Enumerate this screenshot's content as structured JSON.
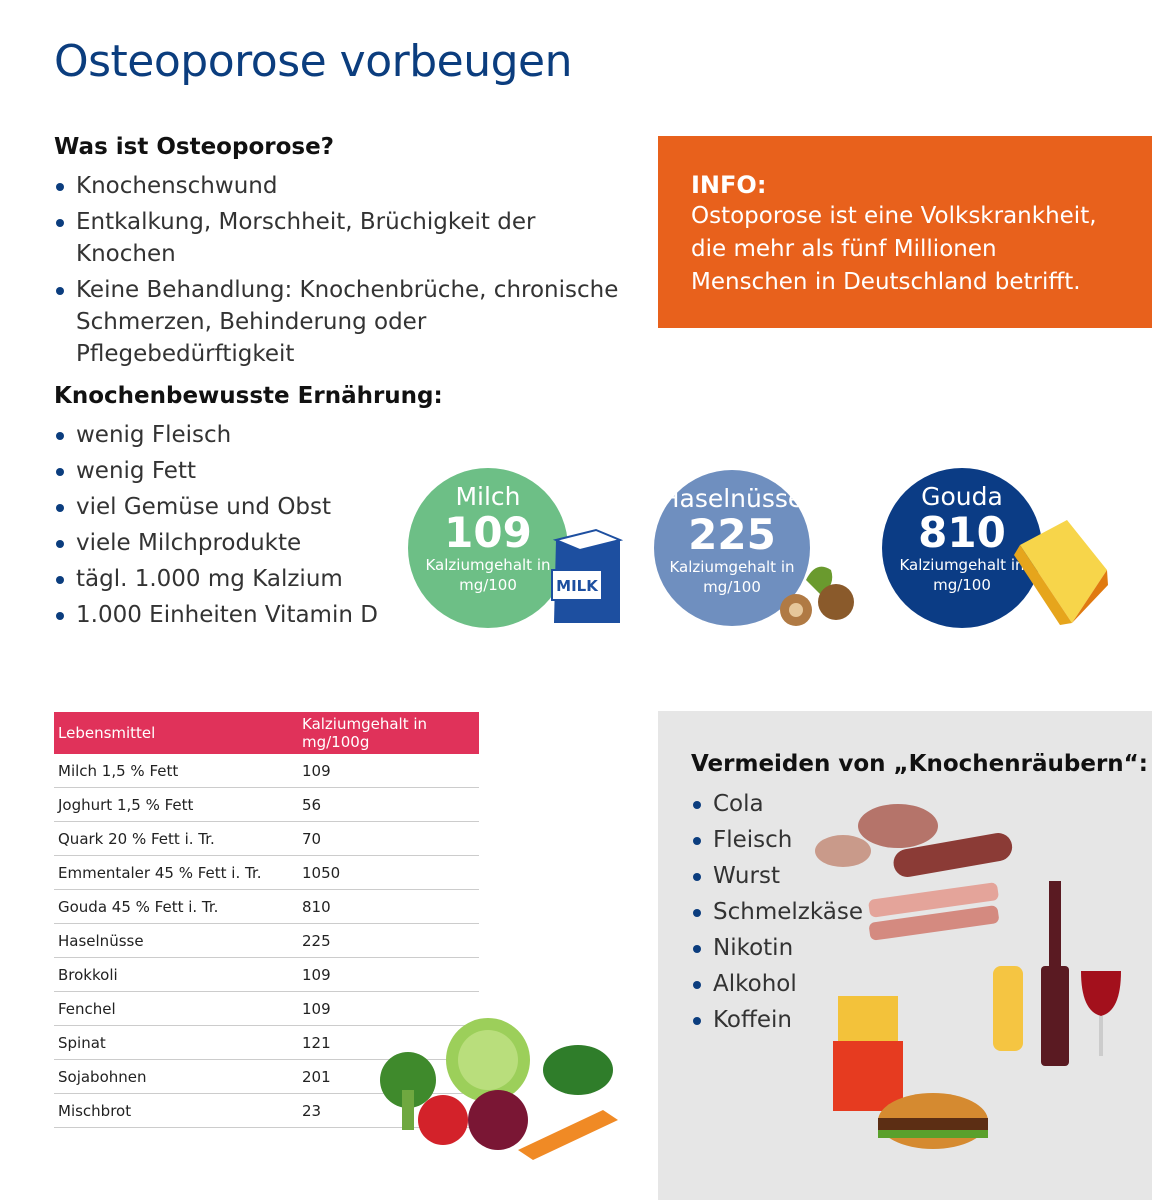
{
  "header": {
    "title": "Osteoporose vorbeugen"
  },
  "what_is": {
    "heading": "Was ist Osteoporose?",
    "bullets": [
      "Knochenschwund",
      "Entkalkung, Morschheit, Brüchigkeit der Knochen",
      "Keine Behandlung: Knochenbrüche, chronische Schmerzen, Behinderung oder Pflegebedürftigkeit"
    ]
  },
  "info": {
    "label": "INFO:",
    "text": "Ostoporose ist eine Volkskrankheit, die mehr als fünf Millionen Menschen in Deutschland betrifft."
  },
  "nutrition": {
    "heading": "Knochenbewusste Ernährung:",
    "bullets": [
      "wenig Fleisch",
      "wenig Fett",
      "viel Gemüse und Obst",
      "viele Milchprodukte",
      "tägl. 1.000 mg Kalzium",
      "1.000 Einheiten Vitamin D"
    ]
  },
  "circles": [
    {
      "name": "Milch",
      "value": 109,
      "unit": "Kalziumgehalt in mg/100",
      "icon_label": "MILK"
    },
    {
      "name": "Haselnüsse",
      "value": 225,
      "unit": "Kalziumgehalt in mg/100"
    },
    {
      "name": "Gouda",
      "value": 810,
      "unit": "Kalziumgehalt in mg/100"
    }
  ],
  "table": {
    "headers": [
      "Lebensmittel",
      "Kalziumgehalt in mg/100g"
    ],
    "rows": [
      [
        "Milch 1,5 % Fett",
        109
      ],
      [
        "Joghurt 1,5 % Fett",
        56
      ],
      [
        "Quark 20 % Fett i. Tr.",
        70
      ],
      [
        "Emmentaler 45 % Fett i. Tr.",
        1050
      ],
      [
        "Gouda 45 % Fett i. Tr.",
        810
      ],
      [
        "Haselnüsse",
        225
      ],
      [
        "Brokkoli",
        109
      ],
      [
        "Fenchel",
        109
      ],
      [
        "Spinat",
        121
      ],
      [
        "Sojabohnen",
        201
      ],
      [
        "Mischbrot",
        23
      ]
    ]
  },
  "avoid": {
    "heading": "Vermeiden von „Knochenräubern“:",
    "bullets": [
      "Cola",
      "Fleisch",
      "Wurst",
      "Schmelzkäse",
      "Nikotin",
      "Alkohol",
      "Koffein"
    ]
  }
}
